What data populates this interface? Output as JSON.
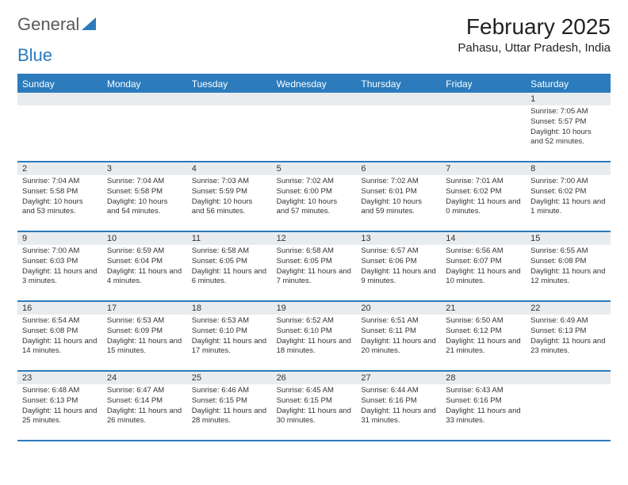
{
  "logo": {
    "text1": "General",
    "text2": "Blue",
    "color1": "#5a5a5a",
    "color2": "#2b7bbd"
  },
  "title": "February 2025",
  "location": "Pahasu, Uttar Pradesh, India",
  "colors": {
    "header_blue": "#2b7bbd",
    "band_grey": "#e9ecef",
    "text": "#333333",
    "white": "#ffffff"
  },
  "day_names": [
    "Sunday",
    "Monday",
    "Tuesday",
    "Wednesday",
    "Thursday",
    "Friday",
    "Saturday"
  ],
  "weeks": [
    [
      {
        "n": "",
        "sr": "",
        "ss": "",
        "dl": ""
      },
      {
        "n": "",
        "sr": "",
        "ss": "",
        "dl": ""
      },
      {
        "n": "",
        "sr": "",
        "ss": "",
        "dl": ""
      },
      {
        "n": "",
        "sr": "",
        "ss": "",
        "dl": ""
      },
      {
        "n": "",
        "sr": "",
        "ss": "",
        "dl": ""
      },
      {
        "n": "",
        "sr": "",
        "ss": "",
        "dl": ""
      },
      {
        "n": "1",
        "sr": "Sunrise: 7:05 AM",
        "ss": "Sunset: 5:57 PM",
        "dl": "Daylight: 10 hours and 52 minutes."
      }
    ],
    [
      {
        "n": "2",
        "sr": "Sunrise: 7:04 AM",
        "ss": "Sunset: 5:58 PM",
        "dl": "Daylight: 10 hours and 53 minutes."
      },
      {
        "n": "3",
        "sr": "Sunrise: 7:04 AM",
        "ss": "Sunset: 5:58 PM",
        "dl": "Daylight: 10 hours and 54 minutes."
      },
      {
        "n": "4",
        "sr": "Sunrise: 7:03 AM",
        "ss": "Sunset: 5:59 PM",
        "dl": "Daylight: 10 hours and 56 minutes."
      },
      {
        "n": "5",
        "sr": "Sunrise: 7:02 AM",
        "ss": "Sunset: 6:00 PM",
        "dl": "Daylight: 10 hours and 57 minutes."
      },
      {
        "n": "6",
        "sr": "Sunrise: 7:02 AM",
        "ss": "Sunset: 6:01 PM",
        "dl": "Daylight: 10 hours and 59 minutes."
      },
      {
        "n": "7",
        "sr": "Sunrise: 7:01 AM",
        "ss": "Sunset: 6:02 PM",
        "dl": "Daylight: 11 hours and 0 minutes."
      },
      {
        "n": "8",
        "sr": "Sunrise: 7:00 AM",
        "ss": "Sunset: 6:02 PM",
        "dl": "Daylight: 11 hours and 1 minute."
      }
    ],
    [
      {
        "n": "9",
        "sr": "Sunrise: 7:00 AM",
        "ss": "Sunset: 6:03 PM",
        "dl": "Daylight: 11 hours and 3 minutes."
      },
      {
        "n": "10",
        "sr": "Sunrise: 6:59 AM",
        "ss": "Sunset: 6:04 PM",
        "dl": "Daylight: 11 hours and 4 minutes."
      },
      {
        "n": "11",
        "sr": "Sunrise: 6:58 AM",
        "ss": "Sunset: 6:05 PM",
        "dl": "Daylight: 11 hours and 6 minutes."
      },
      {
        "n": "12",
        "sr": "Sunrise: 6:58 AM",
        "ss": "Sunset: 6:05 PM",
        "dl": "Daylight: 11 hours and 7 minutes."
      },
      {
        "n": "13",
        "sr": "Sunrise: 6:57 AM",
        "ss": "Sunset: 6:06 PM",
        "dl": "Daylight: 11 hours and 9 minutes."
      },
      {
        "n": "14",
        "sr": "Sunrise: 6:56 AM",
        "ss": "Sunset: 6:07 PM",
        "dl": "Daylight: 11 hours and 10 minutes."
      },
      {
        "n": "15",
        "sr": "Sunrise: 6:55 AM",
        "ss": "Sunset: 6:08 PM",
        "dl": "Daylight: 11 hours and 12 minutes."
      }
    ],
    [
      {
        "n": "16",
        "sr": "Sunrise: 6:54 AM",
        "ss": "Sunset: 6:08 PM",
        "dl": "Daylight: 11 hours and 14 minutes."
      },
      {
        "n": "17",
        "sr": "Sunrise: 6:53 AM",
        "ss": "Sunset: 6:09 PM",
        "dl": "Daylight: 11 hours and 15 minutes."
      },
      {
        "n": "18",
        "sr": "Sunrise: 6:53 AM",
        "ss": "Sunset: 6:10 PM",
        "dl": "Daylight: 11 hours and 17 minutes."
      },
      {
        "n": "19",
        "sr": "Sunrise: 6:52 AM",
        "ss": "Sunset: 6:10 PM",
        "dl": "Daylight: 11 hours and 18 minutes."
      },
      {
        "n": "20",
        "sr": "Sunrise: 6:51 AM",
        "ss": "Sunset: 6:11 PM",
        "dl": "Daylight: 11 hours and 20 minutes."
      },
      {
        "n": "21",
        "sr": "Sunrise: 6:50 AM",
        "ss": "Sunset: 6:12 PM",
        "dl": "Daylight: 11 hours and 21 minutes."
      },
      {
        "n": "22",
        "sr": "Sunrise: 6:49 AM",
        "ss": "Sunset: 6:13 PM",
        "dl": "Daylight: 11 hours and 23 minutes."
      }
    ],
    [
      {
        "n": "23",
        "sr": "Sunrise: 6:48 AM",
        "ss": "Sunset: 6:13 PM",
        "dl": "Daylight: 11 hours and 25 minutes."
      },
      {
        "n": "24",
        "sr": "Sunrise: 6:47 AM",
        "ss": "Sunset: 6:14 PM",
        "dl": "Daylight: 11 hours and 26 minutes."
      },
      {
        "n": "25",
        "sr": "Sunrise: 6:46 AM",
        "ss": "Sunset: 6:15 PM",
        "dl": "Daylight: 11 hours and 28 minutes."
      },
      {
        "n": "26",
        "sr": "Sunrise: 6:45 AM",
        "ss": "Sunset: 6:15 PM",
        "dl": "Daylight: 11 hours and 30 minutes."
      },
      {
        "n": "27",
        "sr": "Sunrise: 6:44 AM",
        "ss": "Sunset: 6:16 PM",
        "dl": "Daylight: 11 hours and 31 minutes."
      },
      {
        "n": "28",
        "sr": "Sunrise: 6:43 AM",
        "ss": "Sunset: 6:16 PM",
        "dl": "Daylight: 11 hours and 33 minutes."
      },
      {
        "n": "",
        "sr": "",
        "ss": "",
        "dl": ""
      }
    ]
  ]
}
